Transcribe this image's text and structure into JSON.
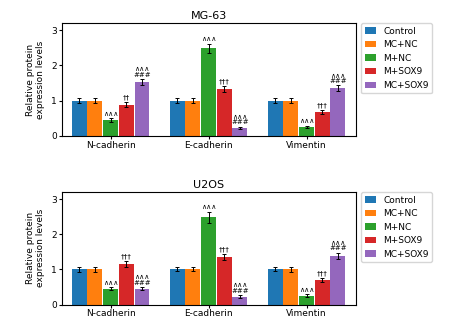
{
  "chart_data": [
    {
      "type": "bar",
      "title": "MG-63",
      "categories": [
        "N-cadherin",
        "E-cadherin",
        "Vimentin"
      ],
      "ylabel": "Relative protein\nexpression levels",
      "ylim": [
        0,
        3.2
      ],
      "yticks": [
        0,
        1,
        2,
        3
      ],
      "legend": "upper left",
      "series": [
        {
          "name": "Control",
          "values": [
            1.0,
            1.0,
            1.0
          ],
          "errors": [
            0.07,
            0.06,
            0.06
          ]
        },
        {
          "name": "MC+NC",
          "values": [
            1.0,
            1.0,
            1.0
          ],
          "errors": [
            0.07,
            0.06,
            0.07
          ]
        },
        {
          "name": "M+NC",
          "values": [
            0.45,
            2.48,
            0.25
          ],
          "errors": [
            0.05,
            0.14,
            0.04
          ]
        },
        {
          "name": "M+SOX9",
          "values": [
            0.88,
            1.32,
            0.68
          ],
          "errors": [
            0.07,
            0.09,
            0.06
          ]
        },
        {
          "name": "MC+SOX9",
          "values": [
            1.52,
            0.22,
            1.35
          ],
          "errors": [
            0.09,
            0.04,
            0.08
          ]
        }
      ],
      "annotations": [
        {
          "category": "N-cadherin",
          "series": "M+NC",
          "text": "∧∧∧"
        },
        {
          "category": "N-cadherin",
          "series": "M+SOX9",
          "text": "††"
        },
        {
          "category": "N-cadherin",
          "series": "MC+SOX9",
          "text": "∧∧∧\n###"
        },
        {
          "category": "E-cadherin",
          "series": "M+NC",
          "text": "∧∧∧"
        },
        {
          "category": "E-cadherin",
          "series": "M+SOX9",
          "text": "†††"
        },
        {
          "category": "E-cadherin",
          "series": "MC+SOX9",
          "text": "∧∧∧\n###"
        },
        {
          "category": "Vimentin",
          "series": "M+NC",
          "text": "∧∧∧"
        },
        {
          "category": "Vimentin",
          "series": "M+SOX9",
          "text": "†††"
        },
        {
          "category": "Vimentin",
          "series": "MC+SOX9",
          "text": "∧∧∧\n###"
        }
      ]
    },
    {
      "type": "bar",
      "title": "U2OS",
      "categories": [
        "N-cadherin",
        "E-cadherin",
        "Vimentin"
      ],
      "ylabel": "Relative protein\nexpression levels",
      "ylim": [
        0,
        3.2
      ],
      "yticks": [
        0,
        1,
        2,
        3
      ],
      "legend": "upper left",
      "series": [
        {
          "name": "Control",
          "values": [
            1.0,
            1.0,
            1.0
          ],
          "errors": [
            0.07,
            0.06,
            0.06
          ]
        },
        {
          "name": "MC+NC",
          "values": [
            1.0,
            1.0,
            1.0
          ],
          "errors": [
            0.07,
            0.06,
            0.07
          ]
        },
        {
          "name": "M+NC",
          "values": [
            0.45,
            2.48,
            0.25
          ],
          "errors": [
            0.04,
            0.16,
            0.04
          ]
        },
        {
          "name": "M+SOX9",
          "values": [
            1.15,
            1.35,
            0.7
          ],
          "errors": [
            0.08,
            0.09,
            0.06
          ]
        },
        {
          "name": "MC+SOX9",
          "values": [
            0.45,
            0.22,
            1.38
          ],
          "errors": [
            0.05,
            0.04,
            0.09
          ]
        }
      ],
      "annotations": [
        {
          "category": "N-cadherin",
          "series": "M+NC",
          "text": "∧∧∧"
        },
        {
          "category": "N-cadherin",
          "series": "M+SOX9",
          "text": "†††"
        },
        {
          "category": "N-cadherin",
          "series": "MC+SOX9",
          "text": "∧∧∧\n###"
        },
        {
          "category": "E-cadherin",
          "series": "M+NC",
          "text": "∧∧∧"
        },
        {
          "category": "E-cadherin",
          "series": "M+SOX9",
          "text": "†††"
        },
        {
          "category": "E-cadherin",
          "series": "MC+SOX9",
          "text": "∧∧∧\n###"
        },
        {
          "category": "Vimentin",
          "series": "M+NC",
          "text": "∧∧∧"
        },
        {
          "category": "Vimentin",
          "series": "M+SOX9",
          "text": "†††"
        },
        {
          "category": "Vimentin",
          "series": "MC+SOX9",
          "text": "∧∧∧\n###"
        }
      ]
    }
  ]
}
